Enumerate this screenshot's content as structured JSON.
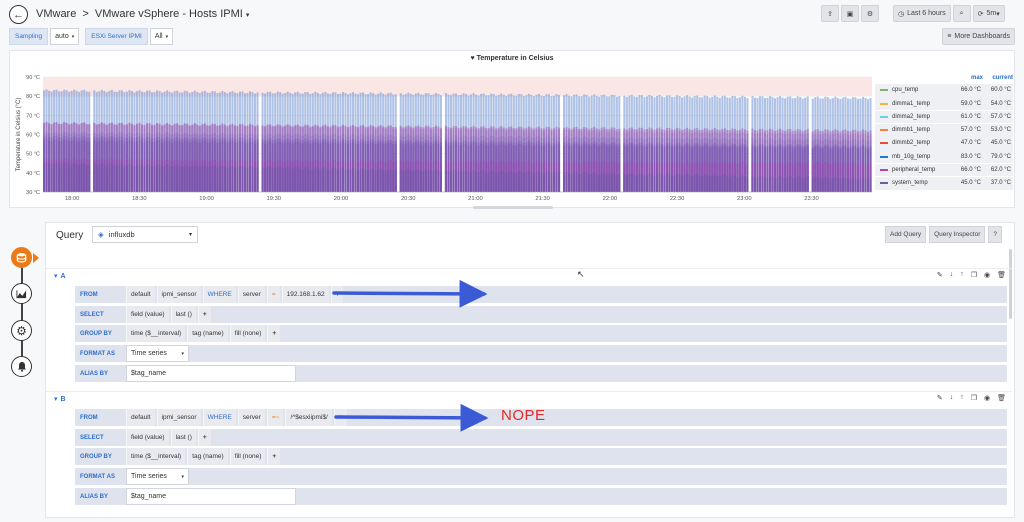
{
  "header": {
    "crumb_parent": "VMware",
    "crumb_sep": ">",
    "dashboard_title": "VMware vSphere - Hosts IPMI",
    "caret": "▾",
    "time_range": "Last 6 hours",
    "refresh": "5m"
  },
  "variables": [
    {
      "label": "Sampling",
      "value": "auto"
    },
    {
      "label": "ESXi Server IPMI",
      "value": "All"
    }
  ],
  "more_dashboards": "More Dashboards",
  "panel": {
    "title": "Temperature in Celsius",
    "legend_max": "max",
    "legend_current": "current",
    "legend": [
      {
        "name": "cpu_temp",
        "max": "66.0 °C",
        "current": "60.0 °C",
        "color": "#7eb26d"
      },
      {
        "name": "dimma1_temp",
        "max": "59.0 °C",
        "current": "54.0 °C",
        "color": "#eab839"
      },
      {
        "name": "dimma2_temp",
        "max": "61.0 °C",
        "current": "57.0 °C",
        "color": "#6ed0e0"
      },
      {
        "name": "dimmb1_temp",
        "max": "57.0 °C",
        "current": "53.0 °C",
        "color": "#ef843c"
      },
      {
        "name": "dimmb2_temp",
        "max": "47.0 °C",
        "current": "45.0 °C",
        "color": "#e24d42"
      },
      {
        "name": "mb_10g_temp",
        "max": "83.0 °C",
        "current": "79.0 °C",
        "color": "#1f78c1"
      },
      {
        "name": "peripheral_temp",
        "max": "66.0 °C",
        "current": "62.0 °C",
        "color": "#ba43a9"
      },
      {
        "name": "system_temp",
        "max": "45.0 °C",
        "current": "37.0 °C",
        "color": "#705da0"
      }
    ]
  },
  "chart_data": {
    "type": "area",
    "title": "Temperature in Celsius",
    "ylabel": "Temperature in Celsius (°C)",
    "xlabel": "",
    "ylim": [
      30,
      90
    ],
    "y_ticks": [
      "30 °C",
      "40 °C",
      "50 °C",
      "60 °C",
      "70 °C",
      "80 °C",
      "90 °C"
    ],
    "x_ticks": [
      "18:00",
      "18:30",
      "19:00",
      "19:30",
      "20:00",
      "20:30",
      "21:00",
      "21:30",
      "22:00",
      "22:30",
      "23:00",
      "23:30"
    ],
    "threshold_above": 80,
    "series": [
      {
        "name": "mb_10g_temp",
        "start": 83,
        "end": 79
      },
      {
        "name": "cpu_temp",
        "start": 66,
        "end": 60
      },
      {
        "name": "peripheral_temp",
        "start": 66,
        "end": 62
      },
      {
        "name": "dimma2_temp",
        "start": 61,
        "end": 57
      },
      {
        "name": "dimma1_temp",
        "start": 59,
        "end": 54
      },
      {
        "name": "dimmb1_temp",
        "start": 57,
        "end": 53
      },
      {
        "name": "dimmb2_temp",
        "start": 47,
        "end": 45
      },
      {
        "name": "system_temp",
        "start": 45,
        "end": 37
      }
    ]
  },
  "editor": {
    "query_label": "Query",
    "datasource": "influxdb",
    "add_query": "Add Query",
    "query_inspector": "Query Inspector",
    "help": "?",
    "queries": [
      {
        "ref": "A",
        "from": [
          "default",
          "ipmi_sensor",
          "WHERE",
          "server",
          "=",
          "192.168.1.62"
        ],
        "select": [
          "field (value)",
          "last ()"
        ],
        "group_by": [
          "time ($__interval)",
          "tag (name)",
          "fill (none)"
        ],
        "format": "Time series",
        "alias": "$tag_name"
      },
      {
        "ref": "B",
        "from": [
          "default",
          "ipmi_sensor",
          "WHERE",
          "server",
          "=~",
          "/^$esxiipmi$/"
        ],
        "select": [
          "field (value)",
          "last ()"
        ],
        "group_by": [
          "time ($__interval)",
          "tag (name)",
          "fill (none)"
        ],
        "format": "Time series",
        "alias": "$tag_name"
      }
    ],
    "kw_from": "FROM",
    "kw_select": "SELECT",
    "kw_group": "GROUP BY",
    "kw_format": "FORMAT AS",
    "kw_alias": "ALIAS BY",
    "plus": "+"
  },
  "annotation": {
    "text": "NOPE",
    "color": "#e02a2a",
    "arrow_color": "#3b5bd6"
  }
}
